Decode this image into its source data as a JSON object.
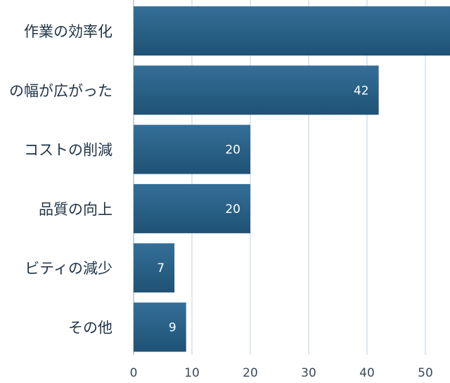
{
  "chart_data": {
    "type": "bar",
    "orientation": "horizontal",
    "categories": [
      "作業の効率化",
      "の幅が広がった",
      "コストの削減",
      "品質の向上",
      "ビティの減少",
      "その他"
    ],
    "values": [
      55,
      42,
      20,
      20,
      7,
      9
    ],
    "data_labels": [
      "",
      "42",
      "20",
      "20",
      "7",
      "9"
    ],
    "x_ticks": [
      "0",
      "10",
      "20",
      "30",
      "40",
      "50"
    ],
    "xlim": [
      0,
      55
    ],
    "grid": true,
    "bar_color": "#2a6186",
    "bar_color_dark": "#1c4a6a",
    "grid_color": "#c9d9e6"
  }
}
